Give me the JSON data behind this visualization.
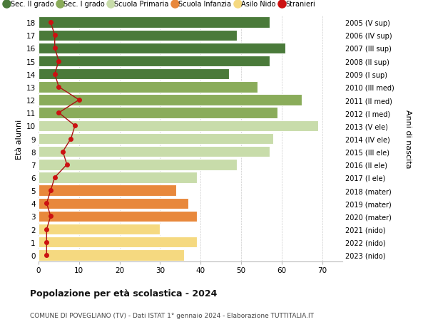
{
  "ages": [
    0,
    1,
    2,
    3,
    4,
    5,
    6,
    7,
    8,
    9,
    10,
    11,
    12,
    13,
    14,
    15,
    16,
    17,
    18
  ],
  "bar_values": [
    36,
    39,
    30,
    39,
    37,
    34,
    39,
    49,
    57,
    58,
    69,
    59,
    65,
    54,
    47,
    57,
    61,
    49,
    57
  ],
  "stranieri": [
    2,
    2,
    2,
    3,
    2,
    3,
    4,
    7,
    6,
    8,
    9,
    5,
    10,
    5,
    4,
    5,
    4,
    4,
    3
  ],
  "bar_colors": [
    "#f5d980",
    "#f5d980",
    "#f5d980",
    "#e8883c",
    "#e8883c",
    "#e8883c",
    "#c8dcaa",
    "#c8dcaa",
    "#c8dcaa",
    "#c8dcaa",
    "#c8dcaa",
    "#8aac5a",
    "#8aac5a",
    "#8aac5a",
    "#4a7a3a",
    "#4a7a3a",
    "#4a7a3a",
    "#4a7a3a",
    "#4a7a3a"
  ],
  "right_labels": [
    "2023 (nido)",
    "2022 (nido)",
    "2021 (nido)",
    "2020 (mater)",
    "2019 (mater)",
    "2018 (mater)",
    "2017 (I ele)",
    "2016 (II ele)",
    "2015 (III ele)",
    "2014 (IV ele)",
    "2013 (V ele)",
    "2012 (I med)",
    "2011 (II med)",
    "2010 (III med)",
    "2009 (I sup)",
    "2008 (II sup)",
    "2007 (III sup)",
    "2006 (IV sup)",
    "2005 (V sup)"
  ],
  "legend_labels": [
    "Sec. II grado",
    "Sec. I grado",
    "Scuola Primaria",
    "Scuola Infanzia",
    "Asilo Nido",
    "Stranieri"
  ],
  "legend_colors": [
    "#4a7a3a",
    "#8aac5a",
    "#c8dcaa",
    "#e8883c",
    "#f5d980",
    "#cc1111"
  ],
  "ylabel": "Età alunni",
  "right_ylabel": "Anni di nascita",
  "title": "Popolazione per età scolastica - 2024",
  "subtitle": "COMUNE DI POVEGLIANO (TV) - Dati ISTAT 1° gennaio 2024 - Elaborazione TUTTITALIA.IT",
  "xlim": [
    0,
    75
  ],
  "xticks": [
    0,
    10,
    20,
    30,
    40,
    50,
    60,
    70
  ],
  "bg_color": "#ffffff",
  "bar_height": 0.85
}
